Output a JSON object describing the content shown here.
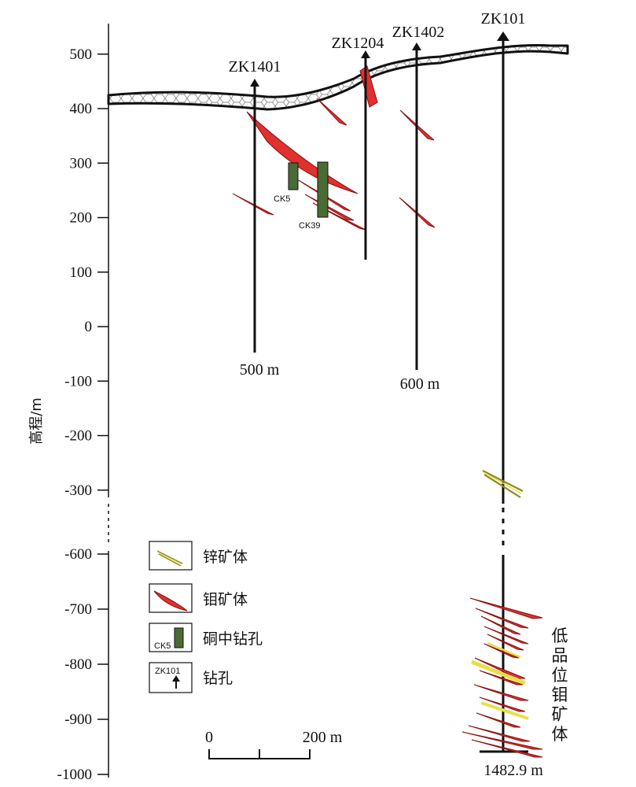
{
  "axis": {
    "label": "高程/m",
    "ticks": [
      "500",
      "400",
      "300",
      "200",
      "100",
      "0",
      "-100",
      "-200",
      "-300",
      "-600",
      "-700",
      "-800",
      "-900",
      "-1000"
    ]
  },
  "boreholes": [
    {
      "id": "ZK1401",
      "depth_label": "500 m"
    },
    {
      "id": "ZK1204",
      "depth_label": ""
    },
    {
      "id": "ZK1402",
      "depth_label": "600 m"
    },
    {
      "id": "ZK101",
      "depth_label": "1482.9 m"
    }
  ],
  "drillholes": [
    {
      "id": "CK5"
    },
    {
      "id": "CK39"
    }
  ],
  "legend": {
    "zinc": "锌矿体",
    "moly": "钼矿体",
    "copper_drill": "硐中钻孔",
    "copper_drill_sample": "CK5",
    "drill": "钻孔",
    "drill_sample": "ZK101"
  },
  "annotation": {
    "chars": [
      "低",
      "品",
      "位",
      "钼",
      "矿",
      "体"
    ]
  },
  "scale": {
    "start": "0",
    "end": "200 m"
  },
  "colors": {
    "moly": "#e03030",
    "zinc": "#e8e04a",
    "copper": "#4a6b34",
    "line": "#111111"
  }
}
